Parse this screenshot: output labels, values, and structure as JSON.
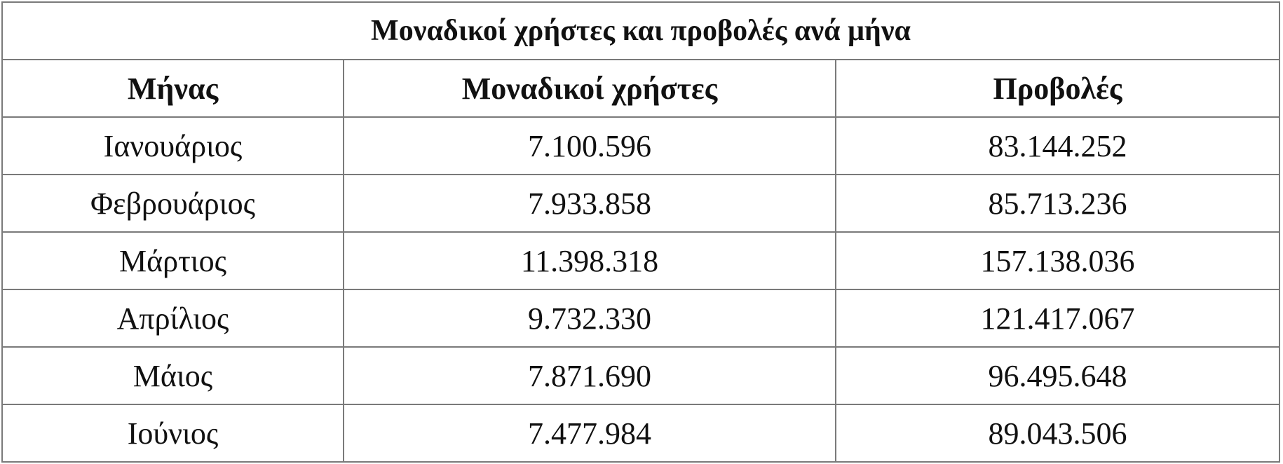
{
  "table": {
    "title": "Μοναδικοί χρήστες και προβολές ανά μήνα",
    "header": [
      "Μήνας",
      "Μοναδικοί χρήστες",
      "Προβολές"
    ],
    "rows": [
      [
        "Ιανουάριος",
        "7.100.596",
        "83.144.252"
      ],
      [
        "Φεβρουάριος",
        "7.933.858",
        "85.713.236"
      ],
      [
        "Μάρτιος",
        "11.398.318",
        "157.138.036"
      ],
      [
        "Απρίλιος",
        "9.732.330",
        "121.417.067"
      ],
      [
        "Μάιος",
        "7.871.690",
        "96.495.648"
      ],
      [
        "Ιούνιος",
        "7.477.984",
        "89.043.506"
      ]
    ]
  }
}
